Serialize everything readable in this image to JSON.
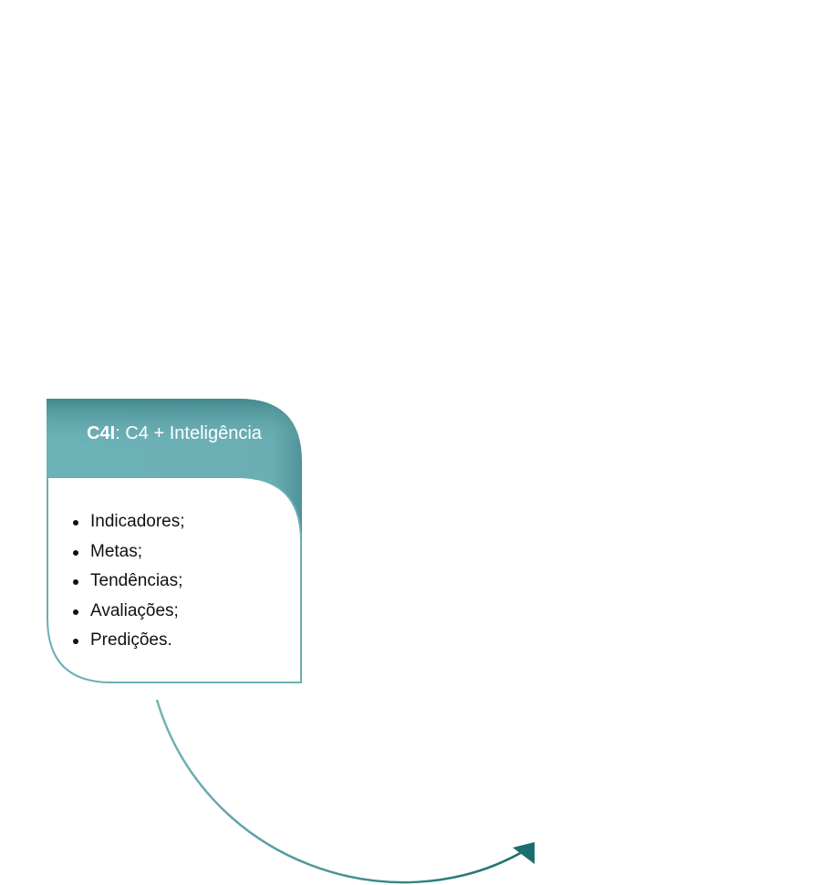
{
  "card": {
    "title_bold": "C4I",
    "title_rest": ": C4 + Inteligência",
    "items": [
      "Indicadores;",
      "Metas;",
      "Tendências;",
      "Avaliações;",
      "Predições."
    ]
  },
  "colors": {
    "header_teal": "#6bafb4",
    "border_teal": "#6aafb4",
    "arrow_teal": "#1a6e6e"
  }
}
